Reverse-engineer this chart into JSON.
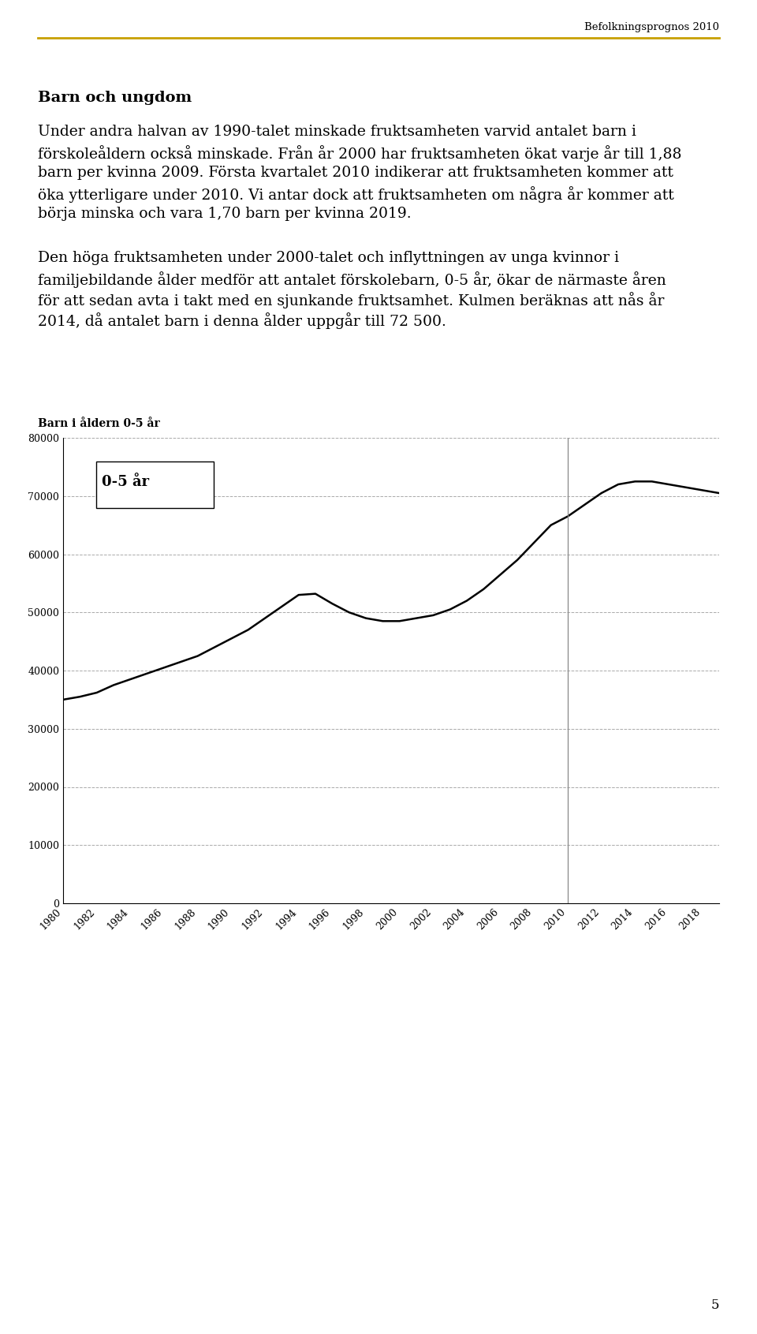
{
  "header_text": "Befolkningsprognos 2010",
  "header_line_color": "#C8A000",
  "page_number": "5",
  "section_title": "Barn och ungdom",
  "paragraph1": "Under andra halvan av 1990-talet minskade fruktsamheten varvid antalet barn i förskoleåldern också minskade. Från år 2000 har fruktsamheten ökat varje år till 1,88 barn per kvinna 2009. Första kvartalet 2010 indikerar att fruktsamheten kommer att öka ytterligare under 2010. Vi antar dock att fruktsamheten om några år kommer att börja minska och vara 1,70 barn per kvinna 2019.",
  "paragraph2": "Den höga fruktsamheten under 2000-talet och inflyttningen av unga kvinnor i familjebildande ålder medför att antalet förskolebarn, 0-5 år, ökar de närmaste åren för att sedan avta i takt med en sjunkande fruktsamhet. Kulmen beräknas att nås år 2014, då antalet barn i denna ålder uppgår till 72 500.",
  "chart_label": "Barn i åldern 0-5 år",
  "legend_label": "0-5 år",
  "x_years": [
    1980,
    1981,
    1982,
    1983,
    1984,
    1985,
    1986,
    1987,
    1988,
    1989,
    1990,
    1991,
    1992,
    1993,
    1994,
    1995,
    1996,
    1997,
    1998,
    1999,
    2000,
    2001,
    2002,
    2003,
    2004,
    2005,
    2006,
    2007,
    2008,
    2009,
    2010,
    2011,
    2012,
    2013,
    2014,
    2015,
    2016,
    2017,
    2018,
    2019
  ],
  "y_values": [
    35000,
    35500,
    36200,
    37500,
    38500,
    39500,
    40500,
    41500,
    42500,
    44000,
    45500,
    47000,
    49000,
    51000,
    53000,
    53200,
    51500,
    50000,
    49000,
    48500,
    48500,
    49000,
    49500,
    50500,
    52000,
    54000,
    56500,
    59000,
    62000,
    65000,
    66500,
    68500,
    70500,
    72000,
    72500,
    72500,
    72000,
    71500,
    71000,
    70500
  ],
  "ylim": [
    0,
    80000
  ],
  "yticks": [
    0,
    10000,
    20000,
    30000,
    40000,
    50000,
    60000,
    70000,
    80000
  ],
  "xtick_years": [
    1980,
    1982,
    1984,
    1986,
    1988,
    1990,
    1992,
    1994,
    1996,
    1998,
    2000,
    2002,
    2004,
    2006,
    2008,
    2010,
    2012,
    2014,
    2016,
    2018
  ],
  "vertical_line_year": 2010,
  "line_color": "#000000",
  "grid_color": "#aaaaaa",
  "grid_style": "--",
  "background_color": "#ffffff",
  "chart_bg_color": "#ffffff",
  "font_family": "DejaVu Serif"
}
